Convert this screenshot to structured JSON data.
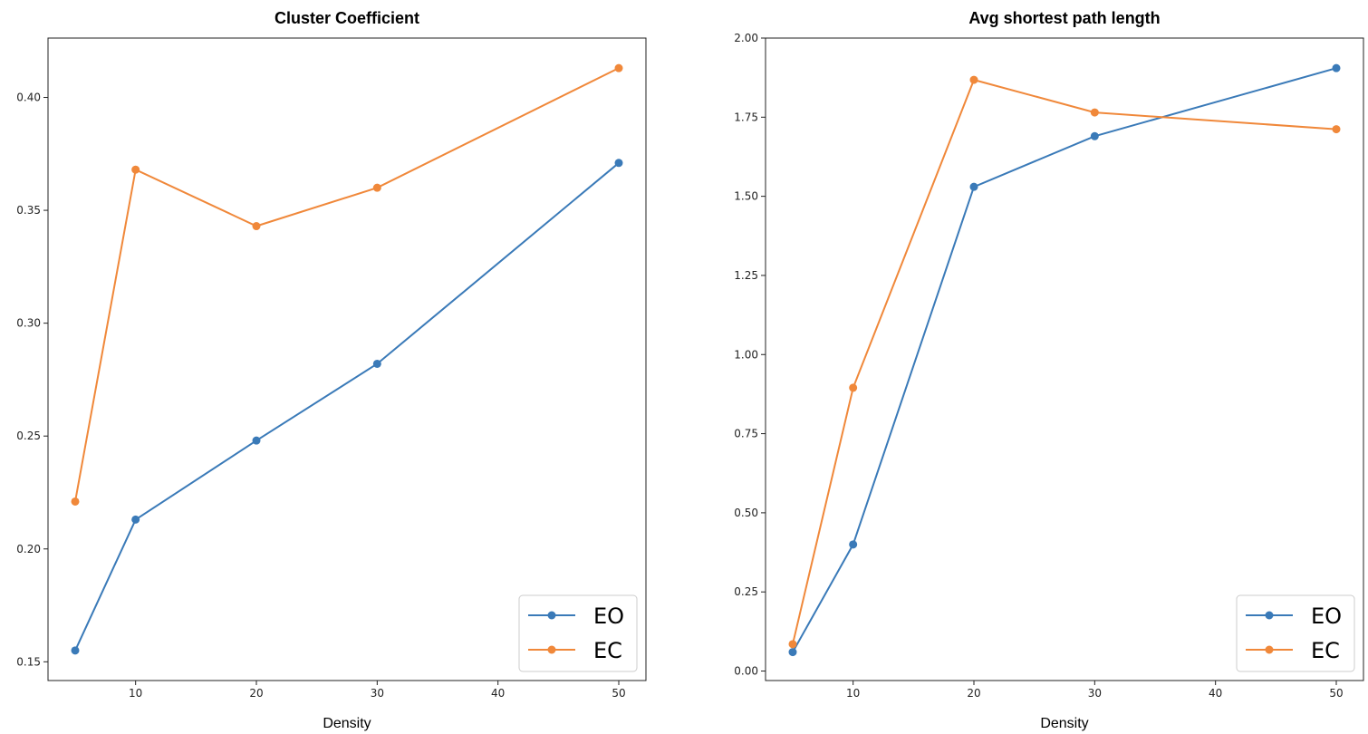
{
  "chart_data": [
    {
      "type": "line",
      "title": "Cluster Coefficient",
      "xlabel": "Density",
      "ylabel": "",
      "x": [
        5,
        10,
        20,
        30,
        50
      ],
      "xlim": [
        2.75,
        52.25
      ],
      "xticks": [
        10,
        20,
        30,
        40,
        50
      ],
      "xtick_labels": [
        "10",
        "20",
        "30",
        "40",
        "50"
      ],
      "ylim": [
        0.1417,
        0.4263
      ],
      "yticks": [
        0.15,
        0.2,
        0.25,
        0.3,
        0.35,
        0.4
      ],
      "ytick_labels": [
        "0.15",
        "0.20",
        "0.25",
        "0.30",
        "0.35",
        "0.40"
      ],
      "grid": false,
      "legend_position": "lower right",
      "series": [
        {
          "name": "EO",
          "color": "#3a7ab8",
          "marker": "circle",
          "values": [
            0.155,
            0.213,
            0.248,
            0.282,
            0.371
          ]
        },
        {
          "name": "EC",
          "color": "#f0883a",
          "marker": "circle",
          "values": [
            0.221,
            0.368,
            0.343,
            0.36,
            0.413
          ]
        }
      ]
    },
    {
      "type": "line",
      "title": "Avg shortest path length",
      "xlabel": "Density",
      "ylabel": "",
      "x": [
        5,
        10,
        20,
        30,
        50
      ],
      "xlim": [
        2.75,
        52.25
      ],
      "xticks": [
        10,
        20,
        30,
        40,
        50
      ],
      "xtick_labels": [
        "10",
        "20",
        "30",
        "40",
        "50"
      ],
      "ylim": [
        -0.03,
        2.0
      ],
      "yticks": [
        0.0,
        0.25,
        0.5,
        0.75,
        1.0,
        1.25,
        1.5,
        1.75,
        2.0
      ],
      "ytick_labels": [
        "0.00",
        "0.25",
        "0.50",
        "0.75",
        "1.00",
        "1.25",
        "1.50",
        "1.75",
        "2.00"
      ],
      "grid": false,
      "legend_position": "lower right",
      "series": [
        {
          "name": "EO",
          "color": "#3a7ab8",
          "marker": "circle",
          "values": [
            0.06,
            0.4,
            1.53,
            1.69,
            1.905
          ]
        },
        {
          "name": "EC",
          "color": "#f0883a",
          "marker": "circle",
          "values": [
            0.085,
            0.895,
            1.868,
            1.765,
            1.712
          ]
        }
      ]
    }
  ]
}
